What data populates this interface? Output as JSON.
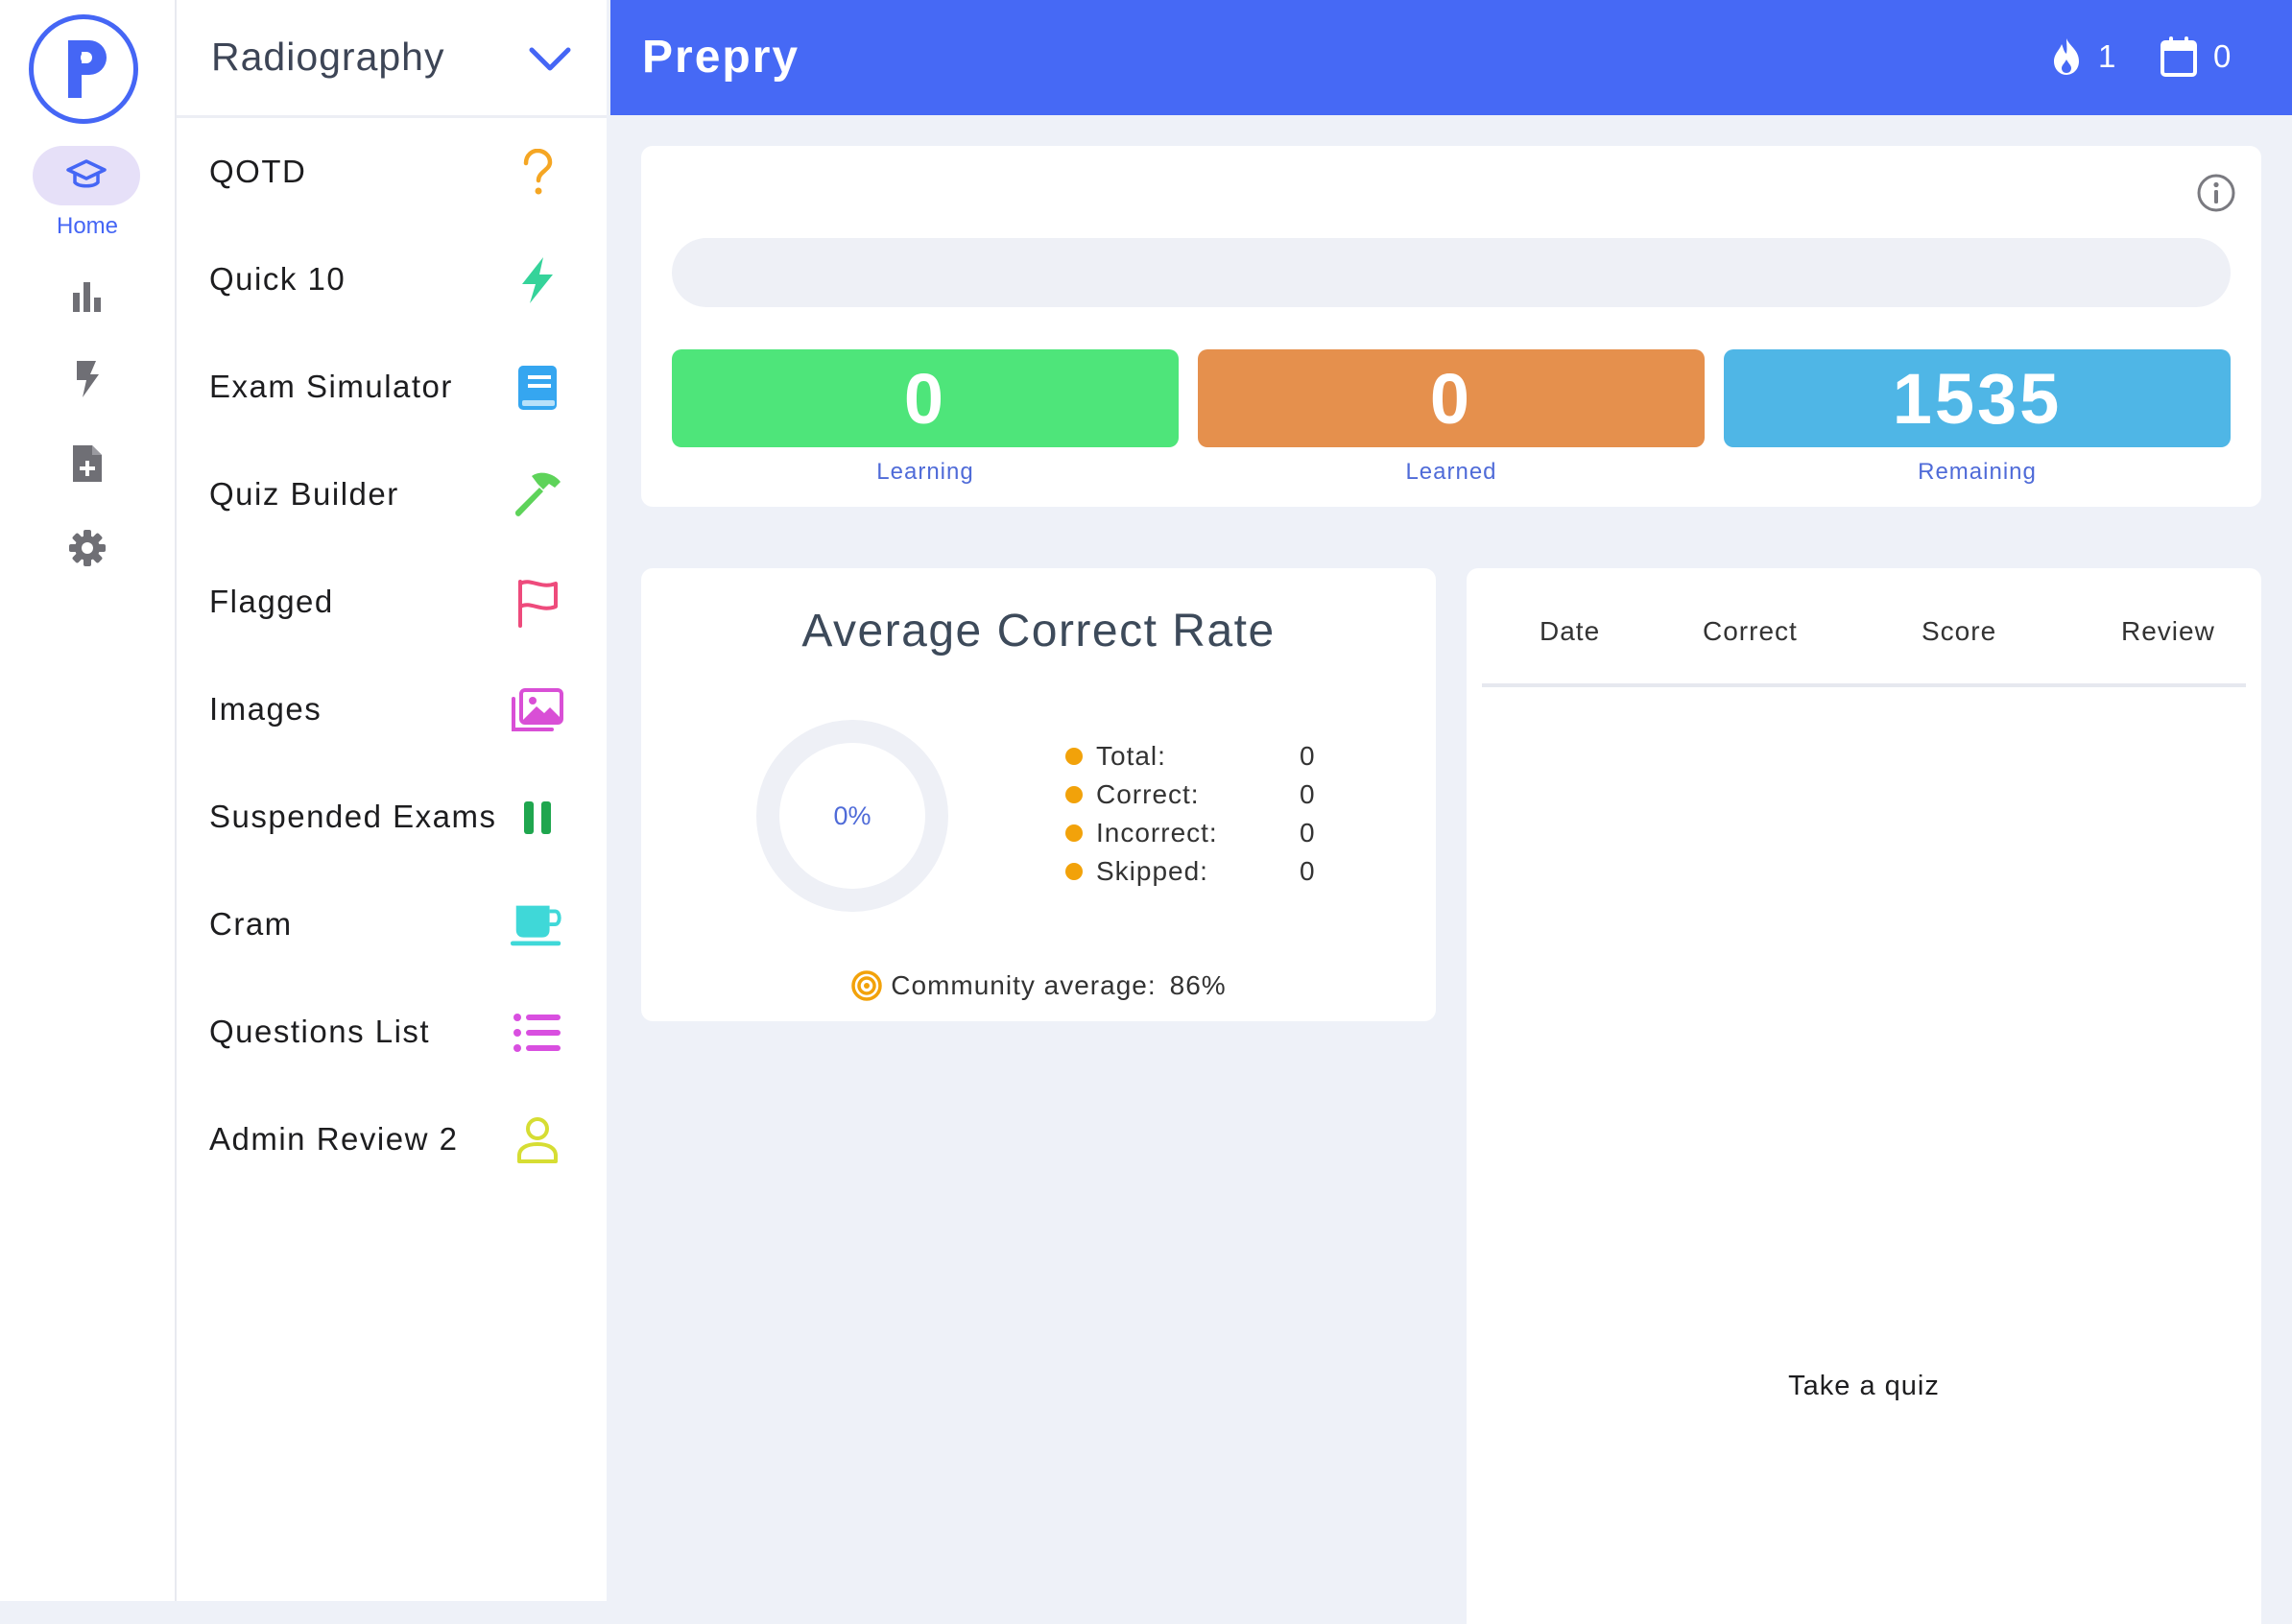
{
  "nav_rail": {
    "logo_letter": "P",
    "items": [
      {
        "icon": "graduation-cap-icon",
        "label": "Home",
        "active": true
      },
      {
        "icon": "bar-chart-icon"
      },
      {
        "icon": "bolt-icon"
      },
      {
        "icon": "file-plus-icon"
      },
      {
        "icon": "gear-icon"
      }
    ]
  },
  "menu": {
    "title": "Radiography",
    "items": [
      {
        "label": "QOTD",
        "icon": "question-mark-icon",
        "color": "#f5a623"
      },
      {
        "label": "Quick 10",
        "icon": "lightning-icon",
        "color": "#35d39a"
      },
      {
        "label": "Exam Simulator",
        "icon": "book-icon",
        "color": "#35a6f0"
      },
      {
        "label": "Quiz Builder",
        "icon": "hammer-icon",
        "color": "#5ed35a"
      },
      {
        "label": "Flagged",
        "icon": "flag-icon",
        "color": "#ee4b7c"
      },
      {
        "label": "Images",
        "icon": "images-icon",
        "color": "#d94fd6"
      },
      {
        "label": "Suspended Exams",
        "icon": "pause-icon",
        "color": "#1fa64e"
      },
      {
        "label": "Cram",
        "icon": "coffee-cup-icon",
        "color": "#3fd8d8"
      },
      {
        "label": "Questions List",
        "icon": "list-icon",
        "color": "#d94fe0"
      },
      {
        "label": "Admin Review 2",
        "icon": "user-icon",
        "color": "#d6dd33"
      }
    ]
  },
  "header": {
    "title": "Prepry",
    "streak_count": "1",
    "calendar_count": "0"
  },
  "progress": {
    "fill_fraction": 0,
    "stats": [
      {
        "value": "0",
        "label": "Learning",
        "color": "#4ee57a"
      },
      {
        "value": "0",
        "label": "Learned",
        "color": "#e5904d"
      },
      {
        "value": "1535",
        "label": "Remaining",
        "color": "#4fb6e6"
      }
    ]
  },
  "average_correct_rate": {
    "title": "Average Correct Rate",
    "percent": "0%",
    "legend": [
      {
        "label": "Total:",
        "value": "0"
      },
      {
        "label": "Correct:",
        "value": "0"
      },
      {
        "label": "Incorrect:",
        "value": "0"
      },
      {
        "label": "Skipped:",
        "value": "0"
      }
    ],
    "community_label": "Community average:",
    "community_value": "86%"
  },
  "history_table": {
    "columns": [
      "Date",
      "Correct",
      "Score",
      "Review"
    ],
    "empty_message": "Take a quiz"
  },
  "colors": {
    "brand": "#4669f5",
    "accent_text": "#4f6bd8",
    "legend_dot": "#f2a20a"
  }
}
